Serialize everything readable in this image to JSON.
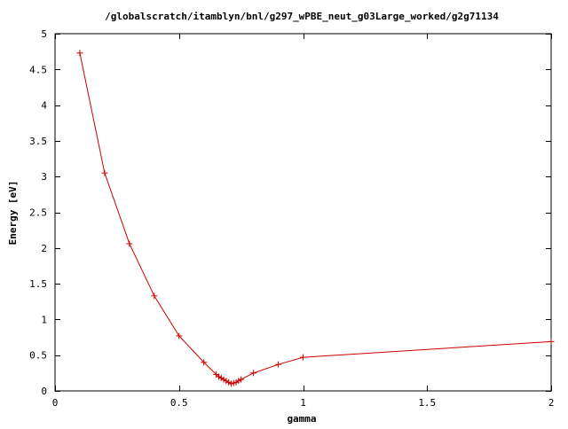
{
  "chart_data": {
    "type": "line",
    "title": "/globalscratch/itamblyn/bnl/g297_wPBE_neut_g03Large_worked/g2g71134",
    "xlabel": "gamma",
    "ylabel": "Energy [eV]",
    "xlim": [
      0,
      2
    ],
    "ylim": [
      0,
      5
    ],
    "x_ticks": [
      "0",
      "0.5",
      "1",
      "1.5",
      "2"
    ],
    "y_ticks": [
      "0",
      "0.5",
      "1",
      "1.5",
      "2",
      "2.5",
      "3",
      "3.5",
      "4",
      "4.5",
      "5"
    ],
    "grid": false,
    "legend": "none",
    "series": [
      {
        "color": "#cc0000",
        "marker": "plus",
        "points": [
          {
            "x": 0.1,
            "y": 4.73
          },
          {
            "x": 0.2,
            "y": 3.05
          },
          {
            "x": 0.3,
            "y": 2.06
          },
          {
            "x": 0.4,
            "y": 1.33
          },
          {
            "x": 0.5,
            "y": 0.77
          },
          {
            "x": 0.6,
            "y": 0.4
          },
          {
            "x": 0.65,
            "y": 0.23
          },
          {
            "x": 0.66,
            "y": 0.2
          },
          {
            "x": 0.67,
            "y": 0.18
          },
          {
            "x": 0.68,
            "y": 0.16
          },
          {
            "x": 0.69,
            "y": 0.14
          },
          {
            "x": 0.7,
            "y": 0.12
          },
          {
            "x": 0.71,
            "y": 0.1
          },
          {
            "x": 0.72,
            "y": 0.11
          },
          {
            "x": 0.73,
            "y": 0.12
          },
          {
            "x": 0.74,
            "y": 0.14
          },
          {
            "x": 0.75,
            "y": 0.16
          },
          {
            "x": 0.8,
            "y": 0.25
          },
          {
            "x": 0.9,
            "y": 0.37
          },
          {
            "x": 1.0,
            "y": 0.47
          },
          {
            "x": 2.0,
            "y": 0.69
          }
        ]
      }
    ]
  }
}
